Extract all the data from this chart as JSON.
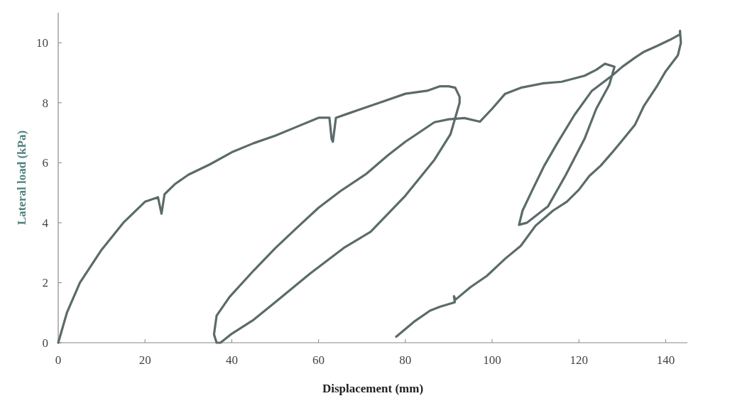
{
  "chart_data": {
    "type": "line",
    "xlabel": "Displacement (mm)",
    "ylabel": "Lateral load (kPa)",
    "xlim": [
      0,
      145
    ],
    "ylim": [
      0,
      11
    ],
    "xticks": [
      0,
      20,
      40,
      60,
      80,
      100,
      120,
      140
    ],
    "yticks": [
      0,
      2,
      4,
      6,
      8,
      10
    ],
    "grid": false,
    "marker": "none",
    "line_style": "solid",
    "series": [
      {
        "color": "#5b6b69",
        "x": [
          0,
          2,
          5,
          10,
          15,
          20,
          23,
          23.5,
          23.8,
          24.5,
          27,
          30,
          35,
          40,
          45,
          50,
          55,
          60,
          62.5,
          63,
          63.3,
          64,
          67,
          70,
          75,
          80,
          85,
          88,
          90,
          91.5,
          92.5,
          92.5,
          91.5,
          90.4,
          86.7,
          80,
          72,
          65.8,
          58,
          50,
          44.8,
          40,
          37.4,
          36.5,
          35.9,
          36.5,
          39.5,
          45,
          50,
          55.2,
          60,
          65,
          71,
          76,
          80,
          86.7,
          90,
          93.6,
          97.2,
          100,
          103,
          106.6,
          111.8,
          116,
          121.3,
          124,
          126,
          128.2,
          127,
          124,
          121.3,
          117,
          112.9,
          108,
          106.2,
          107,
          109.3,
          112,
          115,
          119,
          123,
          127.6,
          130,
          132.9,
          135,
          138.1,
          141,
          143.3,
          143.3,
          143.5,
          142.8,
          140,
          138.1,
          135,
          132.9,
          130,
          127.6,
          125,
          122.4,
          120,
          117.2,
          114,
          110,
          106.6,
          103,
          98.8,
          95,
          91.6,
          91.2,
          91.4,
          88,
          85.7,
          82,
          77.9
        ],
        "values": [
          0,
          1.0,
          2.0,
          3.1,
          4.0,
          4.7,
          4.85,
          4.5,
          4.3,
          4.95,
          5.3,
          5.6,
          5.95,
          6.35,
          6.65,
          6.9,
          7.2,
          7.5,
          7.5,
          6.8,
          6.7,
          7.5,
          7.65,
          7.8,
          8.05,
          8.3,
          8.4,
          8.55,
          8.55,
          8.5,
          8.2,
          8.0,
          7.5,
          6.95,
          6.1,
          4.9,
          3.7,
          3.16,
          2.3,
          1.35,
          0.74,
          0.3,
          0,
          0,
          0.28,
          0.9,
          1.53,
          2.4,
          3.15,
          3.86,
          4.5,
          5.05,
          5.63,
          6.25,
          6.7,
          7.35,
          7.45,
          7.49,
          7.37,
          7.8,
          8.3,
          8.5,
          8.65,
          8.7,
          8.9,
          9.1,
          9.3,
          9.2,
          8.6,
          7.8,
          6.8,
          5.6,
          4.55,
          4.0,
          3.93,
          4.4,
          5.1,
          5.9,
          6.65,
          7.6,
          8.4,
          8.9,
          9.2,
          9.5,
          9.7,
          9.9,
          10.1,
          10.28,
          10.4,
          10.0,
          9.58,
          9.05,
          8.58,
          7.9,
          7.26,
          6.75,
          6.33,
          5.9,
          5.56,
          5.1,
          4.7,
          4.4,
          3.9,
          3.23,
          2.8,
          2.23,
          1.85,
          1.44,
          1.55,
          1.35,
          1.2,
          1.07,
          0.7,
          0.2
        ]
      }
    ]
  }
}
